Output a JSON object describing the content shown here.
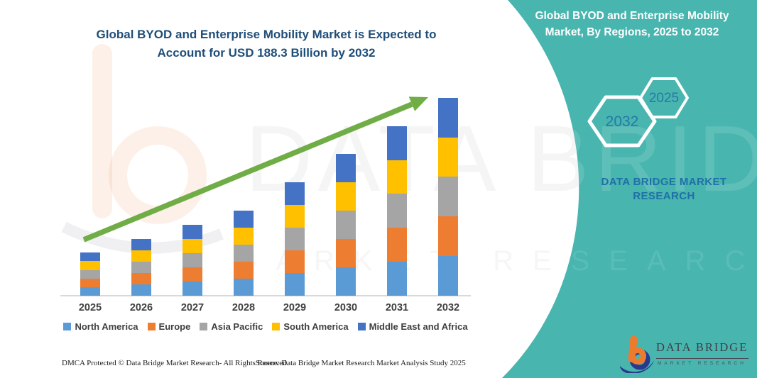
{
  "colors": {
    "teal_panel": "#48B5AF",
    "title_blue": "#1F4E79",
    "arrow_green": "#70AD47",
    "hex_year_blue": "#2878A8",
    "brand_blue": "#2070A8",
    "axis_gray": "#D9D9D9",
    "label_gray": "#3F3F3F",
    "logo_orange": "#EE7B2D",
    "logo_navy": "#273A8E"
  },
  "left": {
    "title_lines": [
      "Global BYOD and Enterprise Mobility Market is Expected to",
      "Account for USD 188.3 Billion by 2032"
    ]
  },
  "chart_data": {
    "type": "bar",
    "stacked": true,
    "title": "Global BYOD and Enterprise Mobility Market is Expected to Account for USD 188.3 Billion by 2032",
    "unit": "USD Billion",
    "categories": [
      "2025",
      "2026",
      "2027",
      "2028",
      "2029",
      "2030",
      "2031",
      "2032"
    ],
    "series": [
      {
        "name": "North America",
        "color": "#5B9BD5",
        "values": [
          8.2,
          10.8,
          13.5,
          16.2,
          21.6,
          27.0,
          32.3,
          37.7
        ]
      },
      {
        "name": "Europe",
        "color": "#ED7D31",
        "values": [
          8.2,
          10.8,
          13.5,
          16.2,
          21.6,
          27.0,
          32.3,
          37.7
        ]
      },
      {
        "name": "Asia Pacific",
        "color": "#A5A5A5",
        "values": [
          8.2,
          10.8,
          13.5,
          16.2,
          21.6,
          27.0,
          32.3,
          37.7
        ]
      },
      {
        "name": "South America",
        "color": "#FFC000",
        "values": [
          8.2,
          10.8,
          13.5,
          16.2,
          21.6,
          27.0,
          32.3,
          37.7
        ]
      },
      {
        "name": "Middle East and Africa",
        "color": "#4472C4",
        "values": [
          8.2,
          10.8,
          13.5,
          16.2,
          21.6,
          27.0,
          32.3,
          37.7
        ]
      }
    ],
    "totals_usd_billion": [
      41.0,
      54.0,
      67.5,
      81.0,
      108.0,
      135.0,
      161.5,
      188.3
    ],
    "highlight_value": "USD 188.3 Billion by 2032",
    "legend_position": "bottom",
    "gridlines": false,
    "y_axis_visible": false,
    "trend_arrow": true
  },
  "footer": {
    "dmca": "DMCA Protected © Data Bridge Market Research- All Rights Reserved.",
    "source": "Source: Data Bridge Market Research Market Analysis Study 2025"
  },
  "right_panel": {
    "title_lines": [
      "Global BYOD and Enterprise Mobility",
      "Market, By Regions, 2025 to 2032"
    ],
    "hexagons": {
      "large": "2032",
      "small": "2025"
    },
    "brand_lines": [
      "DATA BRIDGE MARKET",
      "RESEARCH"
    ],
    "logo": {
      "title": "DATA BRIDGE",
      "subtitle": "MARKET RESEARCH"
    }
  },
  "watermark": {
    "big_text": "DATA BRIDGE",
    "small_text": "MARKET RESEARCH"
  }
}
